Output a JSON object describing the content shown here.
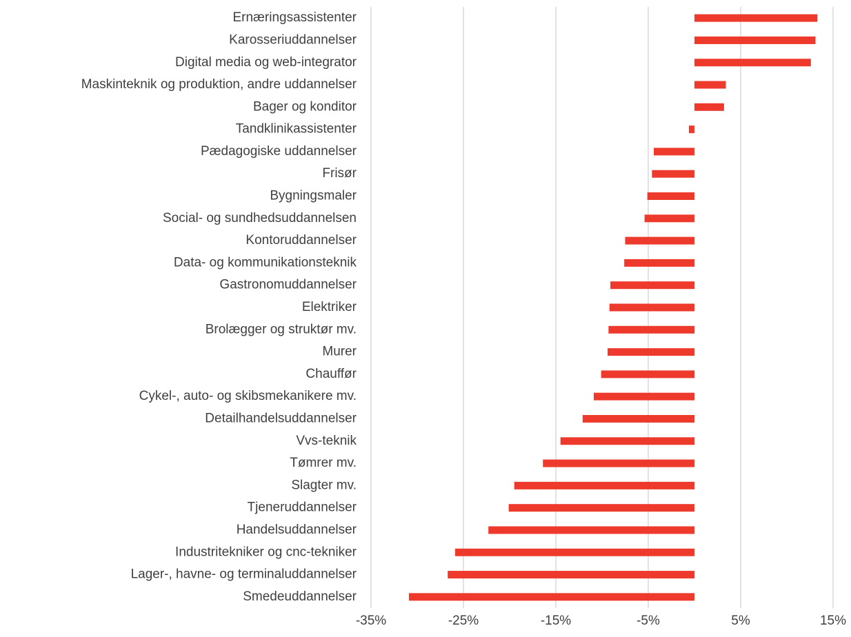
{
  "chart_data": {
    "type": "barh",
    "categories": [
      "Ernæringsassistenter",
      "Karosseriuddannelser",
      "Digital media og web-integrator",
      "Maskinteknik og produktion, andre uddannelser",
      "Bager og konditor",
      "Tandklinikassistenter",
      "Pædagogiske uddannelser",
      "Frisør",
      "Bygningsmaler",
      "Social- og sundhedsuddannelsen",
      "Kontoruddannelser",
      "Data- og kommunikationsteknik",
      "Gastronomuddannelser",
      "Elektriker",
      "Brolægger og struktør mv.",
      "Murer",
      "Chauffør",
      "Cykel-, auto- og skibsmekanikere mv.",
      "Detailhandelsuddannelser",
      "Vvs-teknik",
      "Tømrer mv.",
      "Slagter mv.",
      "Tjeneruddannelser",
      "Handelsuddannelser",
      "Industritekniker og cnc-tekniker",
      "Lager-, havne- og terminaluddannelser",
      "Smedeuddannelser"
    ],
    "values": [
      13.3,
      13.1,
      12.6,
      3.4,
      3.2,
      -0.6,
      -4.4,
      -4.6,
      -5.1,
      -5.4,
      -7.5,
      -7.6,
      -9.1,
      -9.2,
      -9.3,
      -9.4,
      -10.1,
      -10.9,
      -12.1,
      -14.5,
      -16.4,
      -19.5,
      -20.1,
      -22.3,
      -25.9,
      -26.7,
      -30.9
    ],
    "color": "#ee3a2d",
    "xlim": [
      -35,
      15
    ],
    "xticks": [
      {
        "value": -35,
        "label": "-35%"
      },
      {
        "value": -25,
        "label": "-25%"
      },
      {
        "value": -15,
        "label": "-15%"
      },
      {
        "value": -5,
        "label": "-5%"
      },
      {
        "value": 5,
        "label": "5%"
      },
      {
        "value": 15,
        "label": "15%"
      }
    ],
    "grid": true
  }
}
